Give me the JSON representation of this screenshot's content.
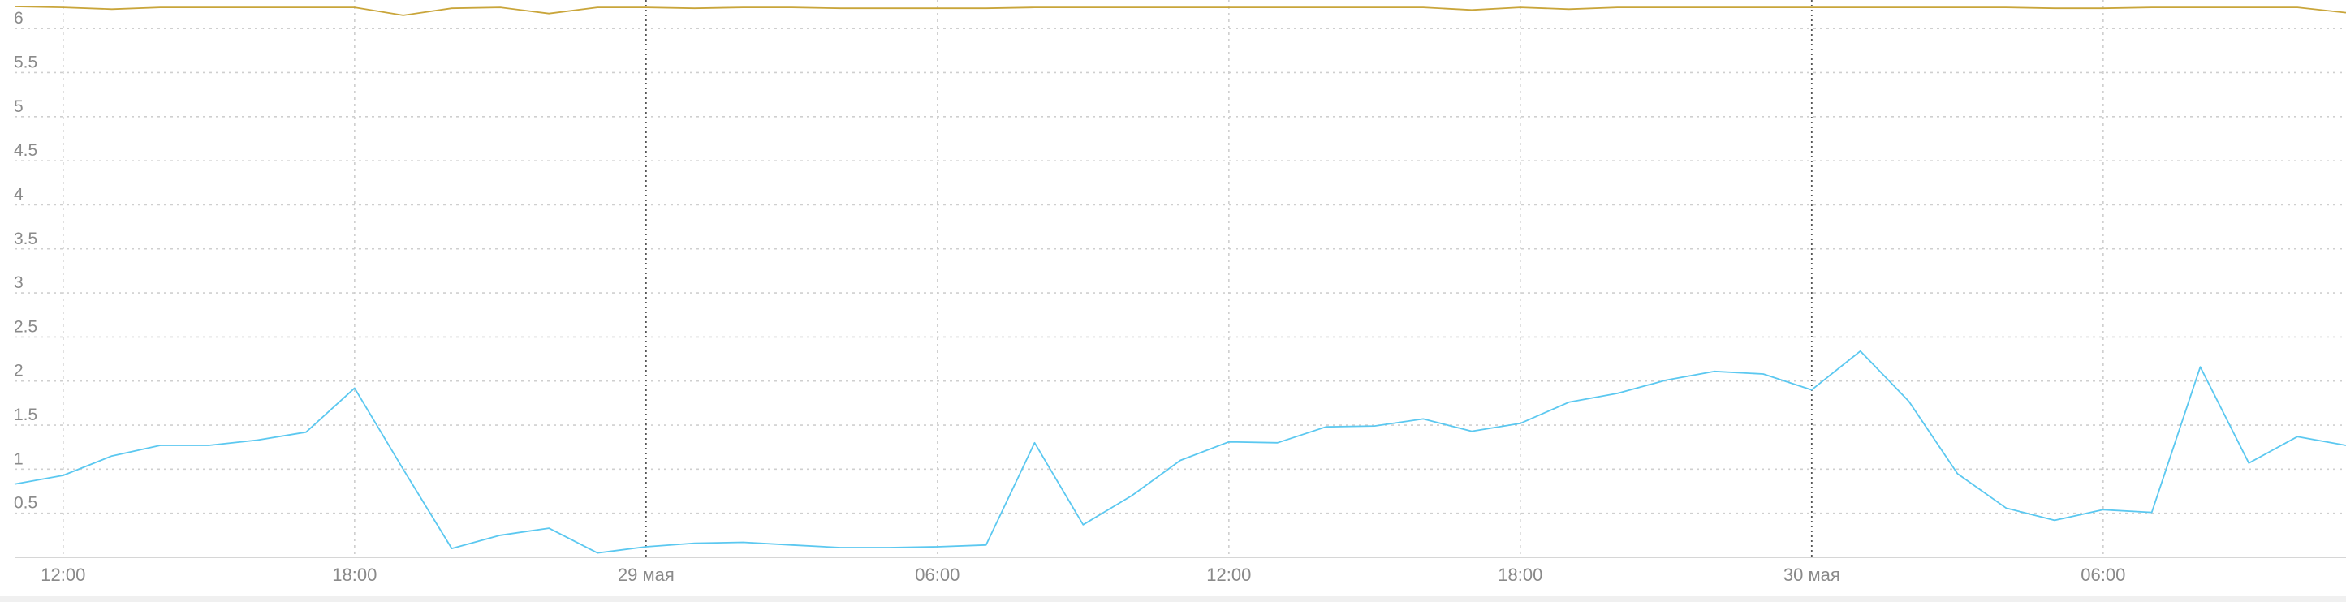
{
  "chart_data": {
    "type": "line",
    "title": "",
    "xlabel": "",
    "ylabel": "",
    "ylim": [
      0,
      6.25
    ],
    "grid": true,
    "legend": "none",
    "y_ticks": [
      0.5,
      1,
      1.5,
      2,
      2.5,
      3,
      3.5,
      4,
      4.5,
      5,
      5.5,
      6
    ],
    "y_tick_labels": [
      "0.5",
      "1",
      "1.5",
      "2",
      "2.5",
      "3",
      "3.5",
      "4",
      "4.5",
      "5",
      "5.5",
      "6"
    ],
    "x_range": [
      "2024-05-28T11:00",
      "2024-05-30T11:00"
    ],
    "x_ticks": [
      {
        "x": "2024-05-28T12:00",
        "label": "12:00",
        "day_boundary": false
      },
      {
        "x": "2024-05-28T18:00",
        "label": "18:00",
        "day_boundary": false
      },
      {
        "x": "2024-05-29T00:00",
        "label": "29 мая",
        "day_boundary": true
      },
      {
        "x": "2024-05-29T06:00",
        "label": "06:00",
        "day_boundary": false
      },
      {
        "x": "2024-05-29T12:00",
        "label": "12:00",
        "day_boundary": false
      },
      {
        "x": "2024-05-29T18:00",
        "label": "18:00",
        "day_boundary": false
      },
      {
        "x": "2024-05-30T00:00",
        "label": "30 мая",
        "day_boundary": true
      },
      {
        "x": "2024-05-30T06:00",
        "label": "06:00",
        "day_boundary": false
      }
    ],
    "series": [
      {
        "color": "#5bc8f0",
        "x": [
          "2024-05-28T11:00",
          "2024-05-28T12:00",
          "2024-05-28T13:00",
          "2024-05-28T14:00",
          "2024-05-28T15:00",
          "2024-05-28T16:00",
          "2024-05-28T17:00",
          "2024-05-28T18:00",
          "2024-05-28T19:00",
          "2024-05-28T20:00",
          "2024-05-28T21:00",
          "2024-05-28T22:00",
          "2024-05-28T23:00",
          "2024-05-29T00:00",
          "2024-05-29T01:00",
          "2024-05-29T02:00",
          "2024-05-29T03:00",
          "2024-05-29T04:00",
          "2024-05-29T05:00",
          "2024-05-29T06:00",
          "2024-05-29T07:00",
          "2024-05-29T08:00",
          "2024-05-29T09:00",
          "2024-05-29T10:00",
          "2024-05-29T11:00",
          "2024-05-29T12:00",
          "2024-05-29T13:00",
          "2024-05-29T14:00",
          "2024-05-29T15:00",
          "2024-05-29T16:00",
          "2024-05-29T17:00",
          "2024-05-29T18:00",
          "2024-05-29T19:00",
          "2024-05-29T20:00",
          "2024-05-29T21:00",
          "2024-05-29T22:00",
          "2024-05-29T23:00",
          "2024-05-30T00:00",
          "2024-05-30T01:00",
          "2024-05-30T02:00",
          "2024-05-30T03:00",
          "2024-05-30T04:00",
          "2024-05-30T05:00",
          "2024-05-30T06:00",
          "2024-05-30T07:00",
          "2024-05-30T08:00",
          "2024-05-30T09:00",
          "2024-05-30T10:00",
          "2024-05-30T11:00"
        ],
        "values": [
          0.83,
          0.93,
          1.15,
          1.27,
          1.27,
          1.33,
          1.42,
          1.92,
          1.0,
          0.1,
          0.25,
          0.33,
          0.05,
          0.12,
          0.16,
          0.17,
          0.14,
          0.11,
          0.11,
          0.12,
          0.14,
          1.3,
          0.37,
          0.7,
          1.1,
          1.31,
          1.3,
          1.48,
          1.49,
          1.57,
          1.43,
          1.52,
          1.76,
          1.86,
          2.01,
          2.11,
          2.08,
          1.9,
          2.34,
          1.77,
          0.95,
          0.56,
          0.42,
          0.54,
          0.51,
          2.16,
          1.07,
          1.37,
          1.27
        ]
      },
      {
        "color": "#c9a53a",
        "x": [
          "2024-05-28T11:00",
          "2024-05-28T12:00",
          "2024-05-28T13:00",
          "2024-05-28T14:00",
          "2024-05-28T15:00",
          "2024-05-28T16:00",
          "2024-05-28T17:00",
          "2024-05-28T18:00",
          "2024-05-28T19:00",
          "2024-05-28T20:00",
          "2024-05-28T21:00",
          "2024-05-28T22:00",
          "2024-05-28T23:00",
          "2024-05-29T00:00",
          "2024-05-29T01:00",
          "2024-05-29T02:00",
          "2024-05-29T03:00",
          "2024-05-29T04:00",
          "2024-05-29T05:00",
          "2024-05-29T06:00",
          "2024-05-29T07:00",
          "2024-05-29T08:00",
          "2024-05-29T09:00",
          "2024-05-29T10:00",
          "2024-05-29T11:00",
          "2024-05-29T12:00",
          "2024-05-29T13:00",
          "2024-05-29T14:00",
          "2024-05-29T15:00",
          "2024-05-29T16:00",
          "2024-05-29T17:00",
          "2024-05-29T18:00",
          "2024-05-29T19:00",
          "2024-05-29T20:00",
          "2024-05-29T21:00",
          "2024-05-29T22:00",
          "2024-05-29T23:00",
          "2024-05-30T00:00",
          "2024-05-30T01:00",
          "2024-05-30T02:00",
          "2024-05-30T03:00",
          "2024-05-30T04:00",
          "2024-05-30T05:00",
          "2024-05-30T06:00",
          "2024-05-30T07:00",
          "2024-05-30T08:00",
          "2024-05-30T09:00",
          "2024-05-30T10:00",
          "2024-05-30T11:00"
        ],
        "values": [
          6.25,
          6.24,
          6.22,
          6.24,
          6.24,
          6.24,
          6.24,
          6.24,
          6.15,
          6.23,
          6.24,
          6.17,
          6.24,
          6.24,
          6.23,
          6.24,
          6.24,
          6.23,
          6.23,
          6.23,
          6.23,
          6.24,
          6.24,
          6.24,
          6.24,
          6.24,
          6.24,
          6.24,
          6.24,
          6.24,
          6.21,
          6.24,
          6.22,
          6.24,
          6.24,
          6.24,
          6.24,
          6.24,
          6.24,
          6.24,
          6.24,
          6.24,
          6.23,
          6.23,
          6.24,
          6.24,
          6.24,
          6.24,
          6.18
        ]
      }
    ]
  }
}
